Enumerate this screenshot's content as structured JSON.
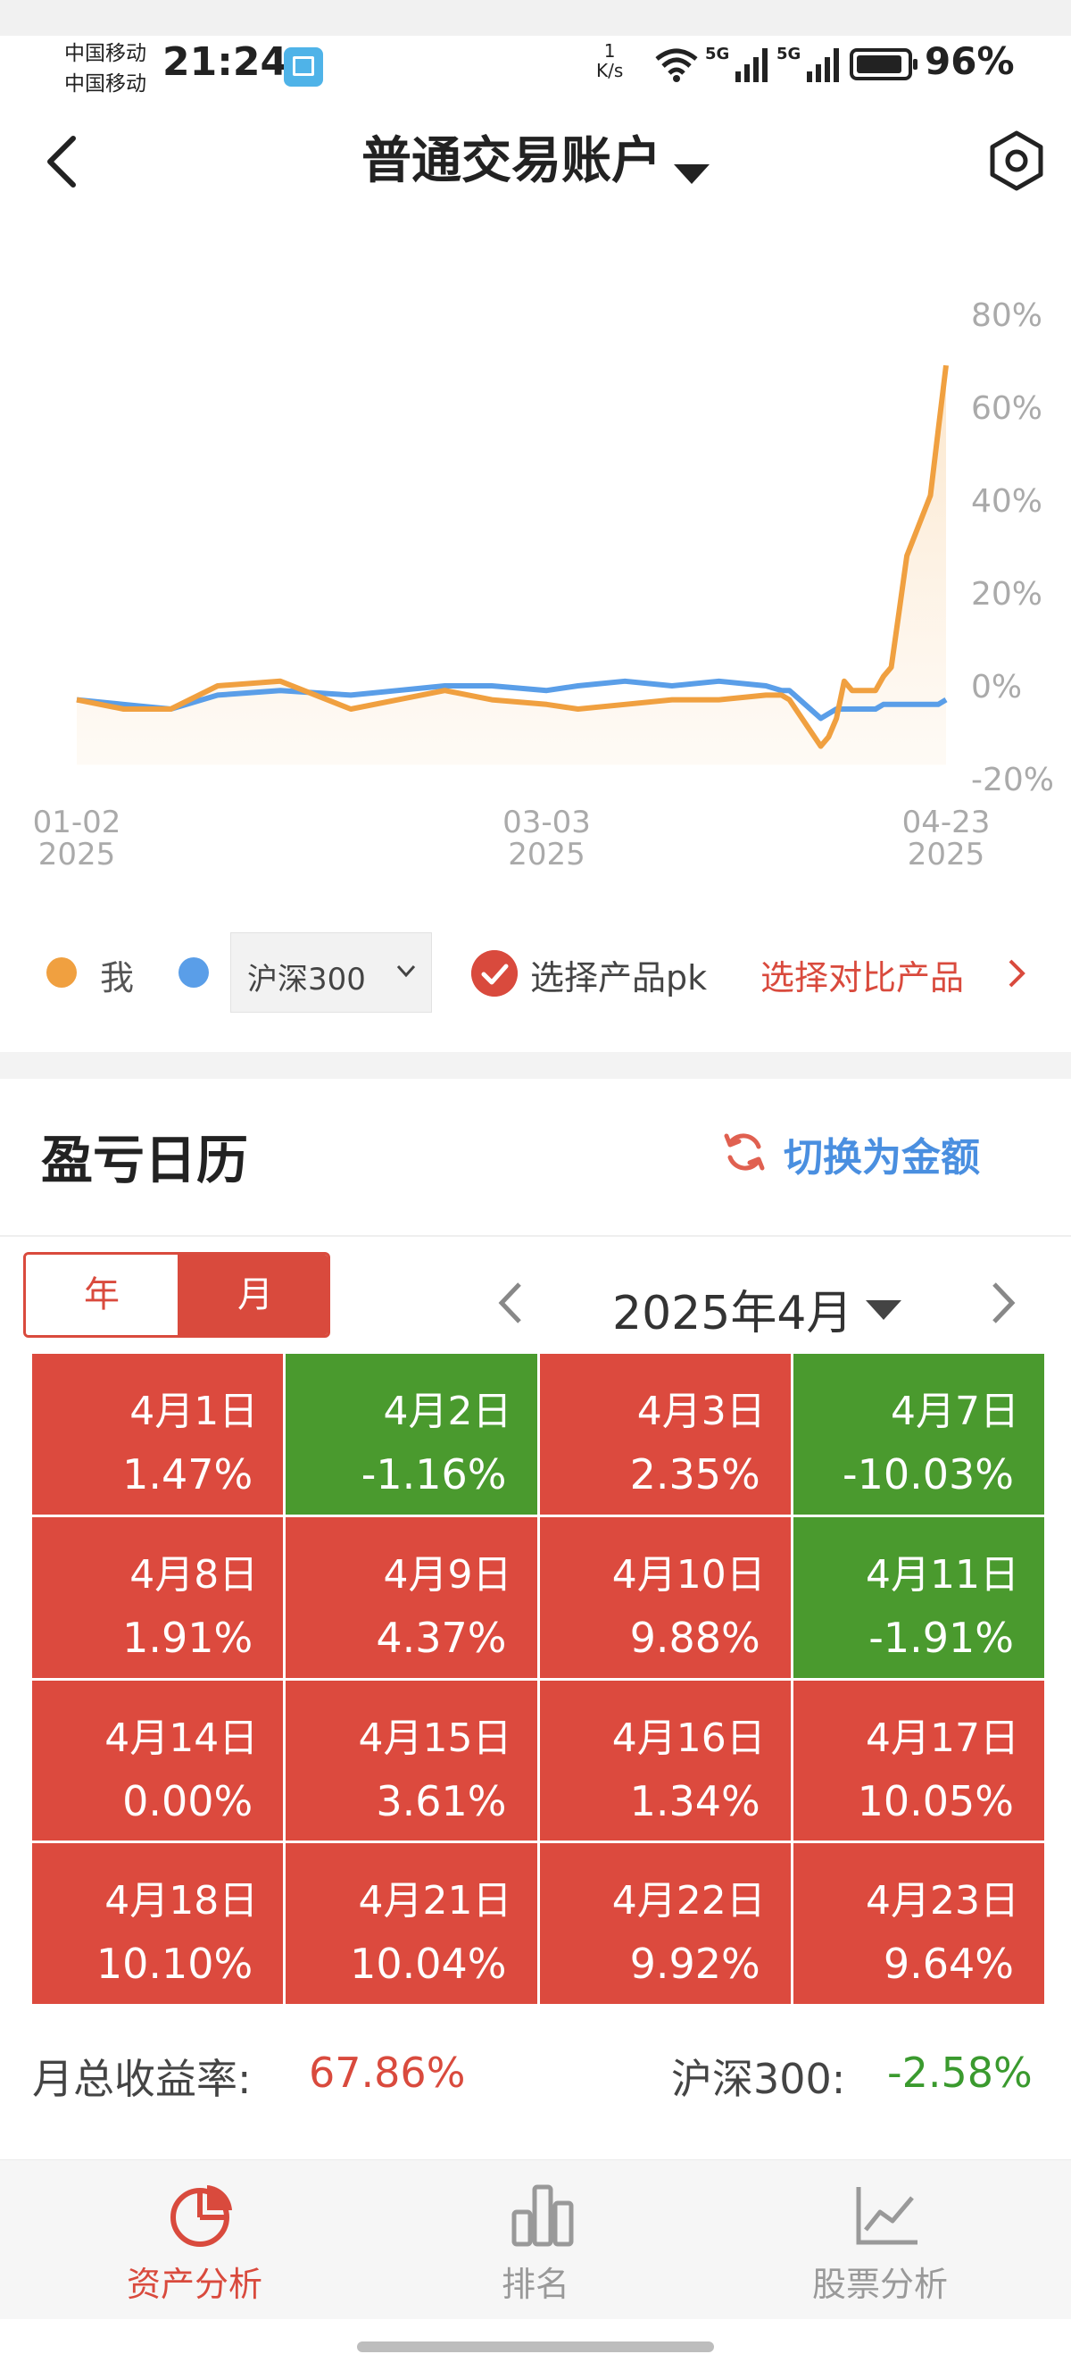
{
  "status_bar": {
    "carrier_1": "中国移动",
    "carrier_2": "中国移动",
    "time": "21:24",
    "net_speed_value": "1",
    "net_speed_unit": "K/s",
    "battery": "96%"
  },
  "header": {
    "title": "普通交易账户"
  },
  "chart_data": {
    "type": "line",
    "x_ticks": [
      "01-02\n2025",
      "03-03\n2025",
      "04-23\n2025"
    ],
    "x_tick_lines": [
      [
        "01-02",
        "2025"
      ],
      [
        "03-03",
        "2025"
      ],
      [
        "04-23",
        "2025"
      ]
    ],
    "y_ticks": [
      "80%",
      "60%",
      "40%",
      "20%",
      "0%",
      "-20%"
    ],
    "ylim": [
      -20,
      80
    ],
    "x_range": [
      "2025-01-02",
      "2025-04-23"
    ],
    "series": [
      {
        "name": "我",
        "color": "#f0a040",
        "x": [
          "2025-01-02",
          "2025-01-08",
          "2025-01-14",
          "2025-01-20",
          "2025-01-28",
          "2025-02-06",
          "2025-02-12",
          "2025-02-18",
          "2025-02-24",
          "2025-03-03",
          "2025-03-07",
          "2025-03-13",
          "2025-03-19",
          "2025-03-25",
          "2025-03-31",
          "2025-04-02",
          "2025-04-03",
          "2025-04-07",
          "2025-04-08",
          "2025-04-09",
          "2025-04-10",
          "2025-04-11",
          "2025-04-14",
          "2025-04-15",
          "2025-04-16",
          "2025-04-17",
          "2025-04-18",
          "2025-04-21",
          "2025-04-22",
          "2025-04-23"
        ],
        "values": [
          -3,
          -5,
          -5,
          0,
          1,
          -5,
          -3,
          -1,
          -3,
          -4,
          -5,
          -4,
          -3,
          -3,
          -2,
          -2,
          -3,
          -13,
          -11,
          -7,
          1,
          -1,
          -1,
          2,
          4,
          16,
          28,
          41,
          55,
          69
        ]
      },
      {
        "name": "沪深300",
        "color": "#5a9ee8",
        "x": [
          "2025-01-02",
          "2025-01-08",
          "2025-01-14",
          "2025-01-20",
          "2025-01-28",
          "2025-02-06",
          "2025-02-12",
          "2025-02-18",
          "2025-02-24",
          "2025-03-03",
          "2025-03-07",
          "2025-03-13",
          "2025-03-19",
          "2025-03-25",
          "2025-03-31",
          "2025-04-02",
          "2025-04-03",
          "2025-04-07",
          "2025-04-08",
          "2025-04-09",
          "2025-04-10",
          "2025-04-11",
          "2025-04-14",
          "2025-04-15",
          "2025-04-16",
          "2025-04-17",
          "2025-04-18",
          "2025-04-21",
          "2025-04-22",
          "2025-04-23"
        ],
        "values": [
          -3,
          -4,
          -5,
          -2,
          -1,
          -2,
          -1,
          0,
          0,
          -1,
          0,
          1,
          0,
          1,
          0,
          -1,
          -1,
          -7,
          -6,
          -5,
          -5,
          -5,
          -5,
          -4,
          -4,
          -4,
          -4,
          -4,
          -4,
          -3
        ]
      }
    ]
  },
  "legend": {
    "me_label": "我",
    "me_color": "#f0a040",
    "index_color": "#5a9ee8",
    "index_select_value": "沪深300",
    "pk_label": "选择产品pk",
    "compare_link": "选择对比产品"
  },
  "calendar": {
    "title": "盈亏日历",
    "switch_label": "切换为金额",
    "tab_year": "年",
    "tab_month": "月",
    "month_label": "2025年4月",
    "up_color": "#dc4a3e",
    "down_color": "#4a9a2e",
    "cells": [
      {
        "date": "4月1日",
        "pct": "1.47%",
        "dir": "up"
      },
      {
        "date": "4月2日",
        "pct": "-1.16%",
        "dir": "down"
      },
      {
        "date": "4月3日",
        "pct": "2.35%",
        "dir": "up"
      },
      {
        "date": "4月7日",
        "pct": "-10.03%",
        "dir": "down"
      },
      {
        "date": "4月8日",
        "pct": "1.91%",
        "dir": "up"
      },
      {
        "date": "4月9日",
        "pct": "4.37%",
        "dir": "up"
      },
      {
        "date": "4月10日",
        "pct": "9.88%",
        "dir": "up"
      },
      {
        "date": "4月11日",
        "pct": "-1.91%",
        "dir": "down"
      },
      {
        "date": "4月14日",
        "pct": "0.00%",
        "dir": "up"
      },
      {
        "date": "4月15日",
        "pct": "3.61%",
        "dir": "up"
      },
      {
        "date": "4月16日",
        "pct": "1.34%",
        "dir": "up"
      },
      {
        "date": "4月17日",
        "pct": "10.05%",
        "dir": "up"
      },
      {
        "date": "4月18日",
        "pct": "10.10%",
        "dir": "up"
      },
      {
        "date": "4月21日",
        "pct": "10.04%",
        "dir": "up"
      },
      {
        "date": "4月22日",
        "pct": "9.92%",
        "dir": "up"
      },
      {
        "date": "4月23日",
        "pct": "9.64%",
        "dir": "up"
      }
    ]
  },
  "summary": {
    "month_return_label": "月总收益率:",
    "month_return_value": "67.86%",
    "index_label": "沪深300:",
    "index_value": "-2.58%"
  },
  "bottom_nav": {
    "items": [
      {
        "label": "资产分析",
        "icon": "pie-chart-icon",
        "active": true
      },
      {
        "label": "排名",
        "icon": "bar-chart-icon",
        "active": false
      },
      {
        "label": "股票分析",
        "icon": "line-chart-icon",
        "active": false
      }
    ]
  }
}
